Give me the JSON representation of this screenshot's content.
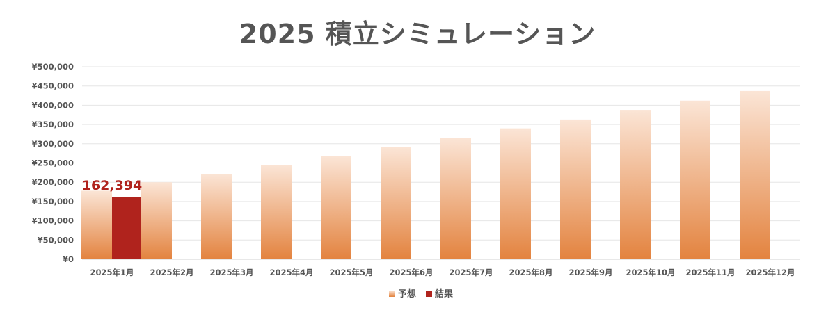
{
  "colors": {
    "forecast_top": "#FBE5D6",
    "forecast_bottom": "#E3833F",
    "result": "#B0231D",
    "gridline": "#e6e6e6",
    "text": "#555555"
  },
  "chart_data": {
    "type": "bar",
    "title": "2025 積立シミュレーション",
    "categories": [
      "2025年1月",
      "2025年2月",
      "2025年3月",
      "2025年4月",
      "2025年5月",
      "2025年6月",
      "2025年7月",
      "2025年8月",
      "2025年9月",
      "2025年10月",
      "2025年11月",
      "2025年12月"
    ],
    "series": [
      {
        "name": "予想",
        "values": [
          178000,
          200000,
          222000,
          245000,
          268000,
          291000,
          315000,
          340000,
          363000,
          388000,
          412000,
          437000
        ]
      },
      {
        "name": "結果",
        "values": [
          162394,
          null,
          null,
          null,
          null,
          null,
          null,
          null,
          null,
          null,
          null,
          null
        ]
      }
    ],
    "data_labels": [
      {
        "series": "結果",
        "category": "2025年1月",
        "text": "162,394"
      }
    ],
    "y_ticks": [
      "¥0",
      "¥50,000",
      "¥100,000",
      "¥150,000",
      "¥200,000",
      "¥250,000",
      "¥300,000",
      "¥350,000",
      "¥400,000",
      "¥450,000",
      "¥500,000"
    ],
    "ylim": [
      0,
      500000
    ],
    "xlabel": "",
    "ylabel": "",
    "grid": true,
    "legend_position": "bottom"
  }
}
